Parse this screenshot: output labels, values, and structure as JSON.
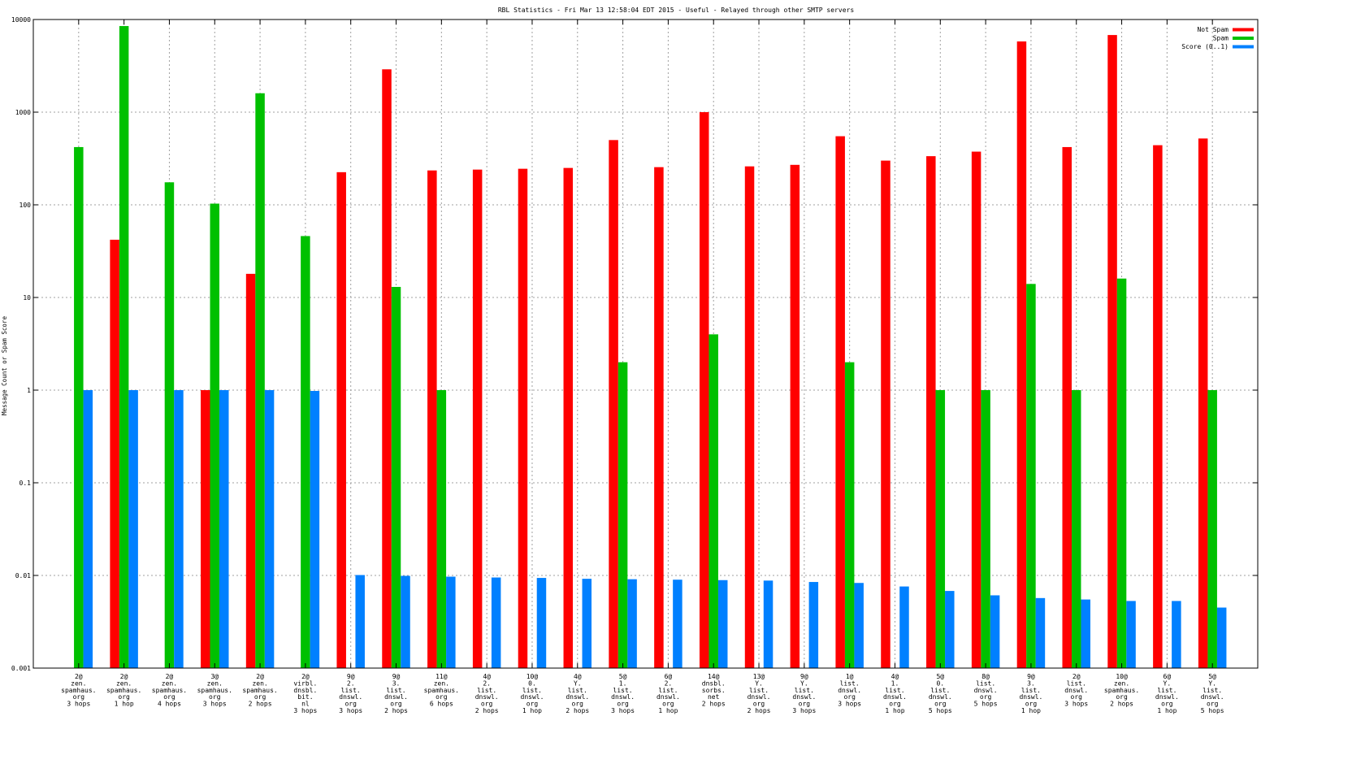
{
  "chart_data": {
    "type": "bar",
    "title": "RBL Statistics - Fri Mar 13 12:58:04 EDT 2015 - Useful - Relayed through other SMTP servers",
    "xlabel": "",
    "ylabel": "Message Count or Spam Score",
    "yscale": "log",
    "ylim": [
      0.001,
      10000
    ],
    "yticks": [
      "0.001",
      "0.01",
      "0.1",
      "1",
      "10",
      "100",
      "1000",
      "10000"
    ],
    "grid": true,
    "legend_position": "top-right",
    "categories": [
      [
        "2@",
        "zen.",
        "spamhaus.",
        "org",
        "3 hops"
      ],
      [
        "2@",
        "zen.",
        "spamhaus.",
        "org",
        "1 hop"
      ],
      [
        "2@",
        "zen.",
        "spamhaus.",
        "org",
        "4 hops"
      ],
      [
        "3@",
        "zen.",
        "spamhaus.",
        "org",
        "3 hops"
      ],
      [
        "2@",
        "zen.",
        "spamhaus.",
        "org",
        "2 hops"
      ],
      [
        "2@",
        "virbl.",
        "dnsbl.",
        "bit.",
        "nl",
        "3 hops"
      ],
      [
        "9@",
        "2.",
        "list.",
        "dnswl.",
        "org",
        "3 hops"
      ],
      [
        "9@",
        "3.",
        "list.",
        "dnswl.",
        "org",
        "2 hops"
      ],
      [
        "11@",
        "zen.",
        "spamhaus.",
        "org",
        "6 hops"
      ],
      [
        "4@",
        "2.",
        "list.",
        "dnswl.",
        "org",
        "2 hops"
      ],
      [
        "10@",
        "0.",
        "list.",
        "dnswl.",
        "org",
        "1 hop"
      ],
      [
        "4@",
        "Y.",
        "list.",
        "dnswl.",
        "org",
        "2 hops"
      ],
      [
        "5@",
        "1.",
        "list.",
        "dnswl.",
        "org",
        "3 hops"
      ],
      [
        "6@",
        "2.",
        "list.",
        "dnswl.",
        "org",
        "1 hop"
      ],
      [
        "14@",
        "dnsbl.",
        "sorbs.",
        "net",
        "2 hops"
      ],
      [
        "13@",
        "Y.",
        "list.",
        "dnswl.",
        "org",
        "2 hops"
      ],
      [
        "9@",
        "Y.",
        "list.",
        "dnswl.",
        "org",
        "3 hops"
      ],
      [
        "1@",
        "list.",
        "dnswl.",
        "org",
        "3 hops"
      ],
      [
        "4@",
        "1.",
        "list.",
        "dnswl.",
        "org",
        "1 hop"
      ],
      [
        "5@",
        "0.",
        "list.",
        "dnswl.",
        "org",
        "5 hops"
      ],
      [
        "8@",
        "list.",
        "dnswl.",
        "org",
        "5 hops"
      ],
      [
        "9@",
        "3.",
        "list.",
        "dnswl.",
        "org",
        "1 hop"
      ],
      [
        "2@",
        "list.",
        "dnswl.",
        "org",
        "3 hops"
      ],
      [
        "10@",
        "zen.",
        "spamhaus.",
        "org",
        "2 hops"
      ],
      [
        "6@",
        "Y.",
        "list.",
        "dnswl.",
        "org",
        "1 hop"
      ],
      [
        "5@",
        "Y.",
        "list.",
        "dnswl.",
        "org",
        "5 hops"
      ]
    ],
    "series": [
      {
        "name": "Not Spam",
        "color": "#ff0000",
        "values": [
          0,
          42,
          0,
          1,
          18,
          0,
          225,
          2900,
          235,
          240,
          245,
          250,
          500,
          255,
          1000,
          260,
          270,
          550,
          300,
          335,
          375,
          5800,
          420,
          6800,
          440,
          520
        ]
      },
      {
        "name": "Spam",
        "color": "#00c000",
        "values": [
          420,
          8500,
          175,
          103,
          1600,
          46,
          0,
          13,
          1,
          0,
          0,
          0,
          2,
          0,
          4,
          0,
          0,
          2,
          0,
          1,
          1,
          14,
          1,
          16,
          0,
          1
        ]
      },
      {
        "name": "Score (0..1)",
        "color": "#0080ff",
        "values": [
          1.0,
          1.0,
          1.0,
          1.0,
          1.0,
          0.98,
          0.0101,
          0.0099,
          0.0097,
          0.0095,
          0.0094,
          0.0092,
          0.0091,
          0.009,
          0.0089,
          0.0088,
          0.0085,
          0.0083,
          0.0076,
          0.0068,
          0.0061,
          0.0057,
          0.0055,
          0.0053,
          0.0053,
          0.0045
        ]
      }
    ]
  }
}
